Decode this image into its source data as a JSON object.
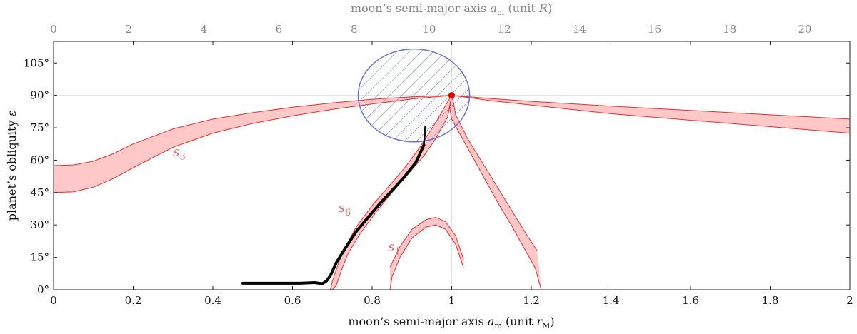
{
  "chart_data": {
    "type": "area",
    "xlabel": {
      "text": "moon’s semi-major axis ",
      "var": "a",
      "sub": "m",
      "unit_pre": " (unit ",
      "unit_var": "r",
      "unit_sub": "M",
      "unit_post": ")"
    },
    "ylabel": {
      "text": "planet’s obliquity ",
      "var": "ε"
    },
    "x2label": {
      "text": "moon’s semi-major axis ",
      "var": "a",
      "sub": "m",
      "unit_pre": " (unit ",
      "unit_var": "R",
      "unit_post": ")"
    },
    "xlim": [
      0,
      2
    ],
    "ylim": [
      0,
      115
    ],
    "x2lim": [
      0,
      21.2
    ],
    "xticks": [
      "0",
      "0.2",
      "0.4",
      "0.6",
      "0.8",
      "1",
      "1.2",
      "1.4",
      "1.6",
      "1.8",
      "2"
    ],
    "xtick_values": [
      0,
      0.2,
      0.4,
      0.6,
      0.8,
      1,
      1.2,
      1.4,
      1.6,
      1.8,
      2
    ],
    "yticks": [
      "0°",
      "15°",
      "30°",
      "45°",
      "60°",
      "75°",
      "90°",
      "105°"
    ],
    "ytick_values": [
      0,
      15,
      30,
      45,
      60,
      75,
      90,
      105
    ],
    "x2ticks": [
      "0",
      "2",
      "4",
      "6",
      "8",
      "10",
      "12",
      "14",
      "16",
      "18",
      "20"
    ],
    "x2tick_values": [
      0,
      2,
      4,
      6,
      8,
      10,
      12,
      14,
      16,
      18,
      20
    ],
    "grid": {
      "reference_lines": {
        "x": 1,
        "y": 90
      }
    },
    "colors": {
      "band_fill": "#ffc8c8",
      "band_edge": "#e03030",
      "ellipse": "#6b72c8",
      "trajectory": "#000000",
      "point": "#e00000"
    },
    "annotations": [
      {
        "sym": "s",
        "sub": "3",
        "x": 0.3,
        "y": 62
      },
      {
        "sym": "s",
        "sub": "6",
        "x": 0.715,
        "y": 36
      },
      {
        "sym": "s",
        "sub": "1",
        "x": 0.84,
        "y": 18
      }
    ],
    "series": [
      {
        "type": "band",
        "upper": [
          [
            0,
            57.5
          ],
          [
            0.05,
            57.8
          ],
          [
            0.1,
            59.5
          ],
          [
            0.15,
            63
          ],
          [
            0.2,
            67.5
          ],
          [
            0.3,
            74.5
          ],
          [
            0.4,
            79
          ],
          [
            0.5,
            82
          ],
          [
            0.6,
            84.5
          ],
          [
            0.7,
            86.5
          ],
          [
            0.8,
            88.2
          ],
          [
            0.9,
            89.3
          ],
          [
            1.0,
            90
          ]
        ],
        "lower": [
          [
            0,
            45
          ],
          [
            0.05,
            45.3
          ],
          [
            0.1,
            47.5
          ],
          [
            0.15,
            51.5
          ],
          [
            0.2,
            56.5
          ],
          [
            0.3,
            66
          ],
          [
            0.4,
            72.5
          ],
          [
            0.5,
            77
          ],
          [
            0.6,
            80.5
          ],
          [
            0.7,
            83.5
          ],
          [
            0.8,
            86
          ],
          [
            0.9,
            88.3
          ],
          [
            1.0,
            90
          ]
        ]
      },
      {
        "type": "band",
        "upper": [
          [
            1.0,
            90
          ],
          [
            1.1,
            88.5
          ],
          [
            1.2,
            87.2
          ],
          [
            1.4,
            85
          ],
          [
            1.6,
            83
          ],
          [
            1.8,
            81
          ],
          [
            2.0,
            79
          ]
        ],
        "lower": [
          [
            1.0,
            90
          ],
          [
            1.1,
            87.5
          ],
          [
            1.2,
            85.5
          ],
          [
            1.4,
            81.5
          ],
          [
            1.6,
            78.5
          ],
          [
            1.8,
            75.5
          ],
          [
            2.0,
            72.5
          ]
        ]
      },
      {
        "type": "band",
        "upper": [
          [
            0.695,
            0
          ],
          [
            0.7,
            4
          ],
          [
            0.715,
            12
          ],
          [
            0.73,
            19
          ],
          [
            0.76,
            29
          ],
          [
            0.8,
            39
          ],
          [
            0.84,
            47.5
          ],
          [
            0.88,
            56
          ],
          [
            0.92,
            66
          ],
          [
            0.96,
            77.5
          ],
          [
            0.99,
            87
          ],
          [
            1.0,
            90
          ]
        ],
        "lower": [
          [
            0.7,
            0
          ],
          [
            0.71,
            2
          ],
          [
            0.725,
            10
          ],
          [
            0.74,
            17
          ],
          [
            0.77,
            26
          ],
          [
            0.81,
            36
          ],
          [
            0.85,
            45
          ],
          [
            0.89,
            53.5
          ],
          [
            0.93,
            62
          ],
          [
            0.96,
            70
          ],
          [
            0.99,
            80
          ],
          [
            1.0,
            90
          ]
        ]
      },
      {
        "type": "band",
        "upper": [
          [
            1.0,
            90
          ],
          [
            0.995,
            84
          ],
          [
            1.0,
            79
          ],
          [
            1.03,
            69
          ],
          [
            1.06,
            59
          ],
          [
            1.09,
            49
          ],
          [
            1.12,
            39
          ],
          [
            1.15,
            30
          ],
          [
            1.18,
            20
          ],
          [
            1.21,
            10
          ],
          [
            1.225,
            0
          ]
        ],
        "lower": [
          [
            1.0,
            90
          ],
          [
            1.005,
            86
          ],
          [
            1.01,
            81
          ],
          [
            1.04,
            70
          ],
          [
            1.07,
            61
          ],
          [
            1.1,
            52
          ],
          [
            1.13,
            43
          ],
          [
            1.16,
            34
          ],
          [
            1.19,
            25
          ],
          [
            1.215,
            18
          ]
        ]
      },
      {
        "type": "band",
        "upper": [
          [
            0.845,
            10.5
          ],
          [
            0.87,
            20
          ],
          [
            0.9,
            28
          ],
          [
            0.935,
            32.5
          ],
          [
            0.96,
            33.5
          ],
          [
            0.985,
            31.5
          ],
          [
            1.01,
            25
          ],
          [
            1.03,
            14
          ]
        ],
        "lower": [
          [
            0.845,
            0
          ],
          [
            0.85,
            6
          ],
          [
            0.87,
            15
          ],
          [
            0.9,
            24
          ],
          [
            0.935,
            29
          ],
          [
            0.96,
            30
          ],
          [
            0.985,
            28
          ],
          [
            1.01,
            21
          ],
          [
            1.03,
            10
          ]
        ]
      },
      {
        "type": "trajectory",
        "points": [
          [
            0.475,
            3
          ],
          [
            0.55,
            3
          ],
          [
            0.62,
            3
          ],
          [
            0.655,
            3.3
          ],
          [
            0.675,
            2.8
          ],
          [
            0.685,
            4
          ],
          [
            0.695,
            6.5
          ],
          [
            0.71,
            12.5
          ],
          [
            0.73,
            18.5
          ],
          [
            0.76,
            27
          ],
          [
            0.79,
            33.5
          ],
          [
            0.82,
            40
          ],
          [
            0.85,
            46
          ],
          [
            0.88,
            52
          ],
          [
            0.91,
            59
          ],
          [
            0.93,
            67
          ]
        ]
      },
      {
        "type": "hatched_ellipse",
        "cx": 0.905,
        "cy": 90,
        "rx": 0.14,
        "ry": 21.5
      },
      {
        "type": "point",
        "x": 1.0,
        "y": 90
      }
    ]
  }
}
